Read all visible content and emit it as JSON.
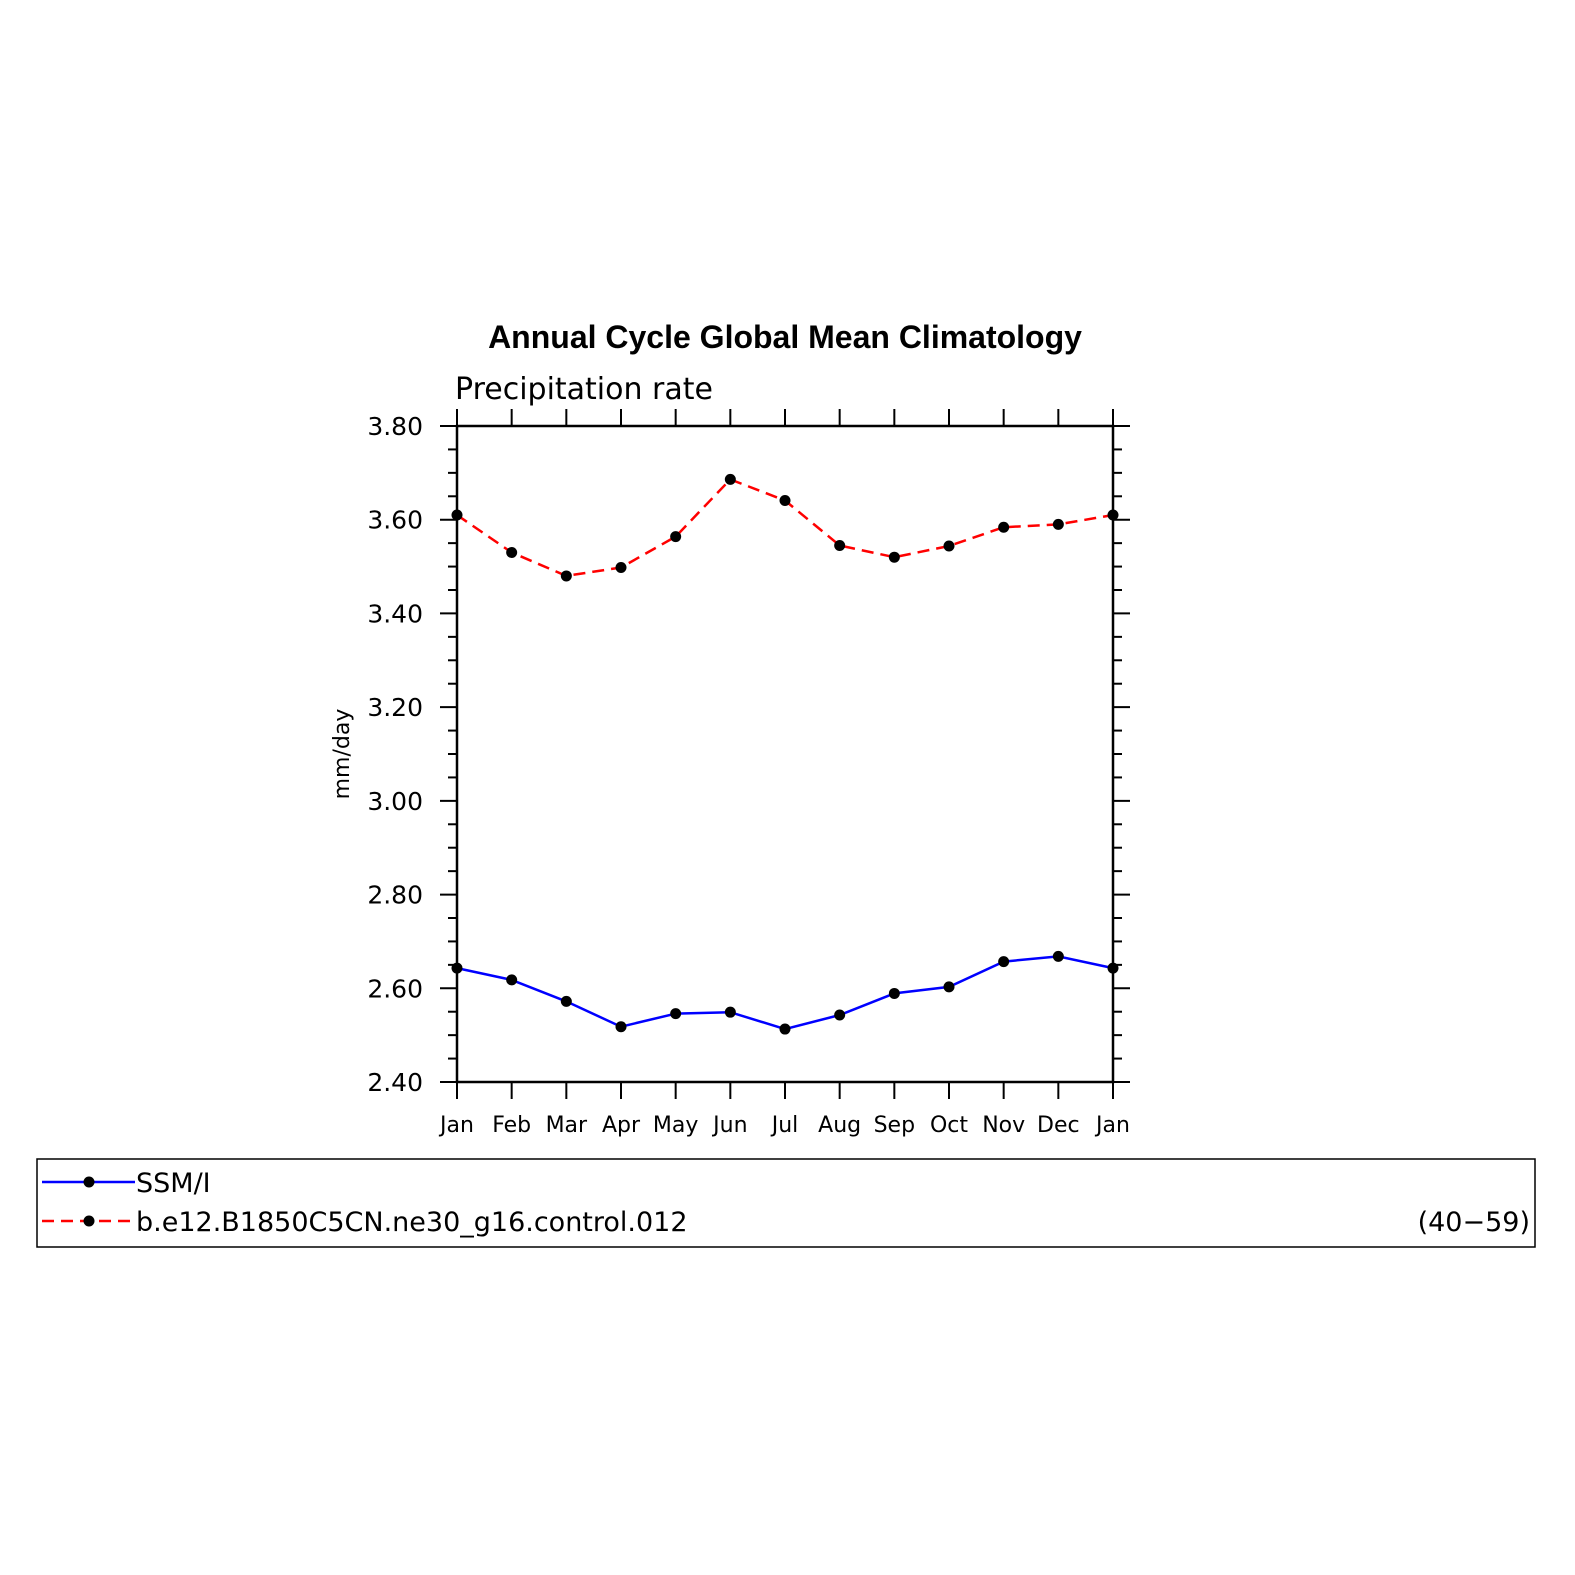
{
  "chart_data": {
    "type": "line",
    "title": "Annual Cycle Global Mean Climatology",
    "subtitle": "Precipitation rate",
    "ylabel": "mm/day",
    "xlabel": "",
    "categories": [
      "Jan",
      "Feb",
      "Mar",
      "Apr",
      "May",
      "Jun",
      "Jul",
      "Aug",
      "Sep",
      "Oct",
      "Nov",
      "Dec",
      "Jan"
    ],
    "ylim": [
      2.4,
      3.8
    ],
    "yticks": [
      "2.40",
      "2.60",
      "2.80",
      "3.00",
      "3.20",
      "3.40",
      "3.60",
      "3.80"
    ],
    "series": [
      {
        "name": "SSM/I",
        "color": "#0000ff",
        "dash": "solid",
        "values": [
          2.643,
          2.618,
          2.572,
          2.518,
          2.546,
          2.549,
          2.513,
          2.543,
          2.589,
          2.603,
          2.657,
          2.668,
          2.643
        ]
      },
      {
        "name": "b.e12.B1850C5CN.ne30_g16.control.012",
        "color": "#ff0000",
        "dash": "dashed",
        "values": [
          3.61,
          3.53,
          3.48,
          3.498,
          3.564,
          3.686,
          3.641,
          3.545,
          3.52,
          3.544,
          3.584,
          3.59,
          3.61
        ]
      }
    ],
    "legend": {
      "placement": "bottom",
      "years_label": "(40−59)"
    },
    "grid": false
  }
}
